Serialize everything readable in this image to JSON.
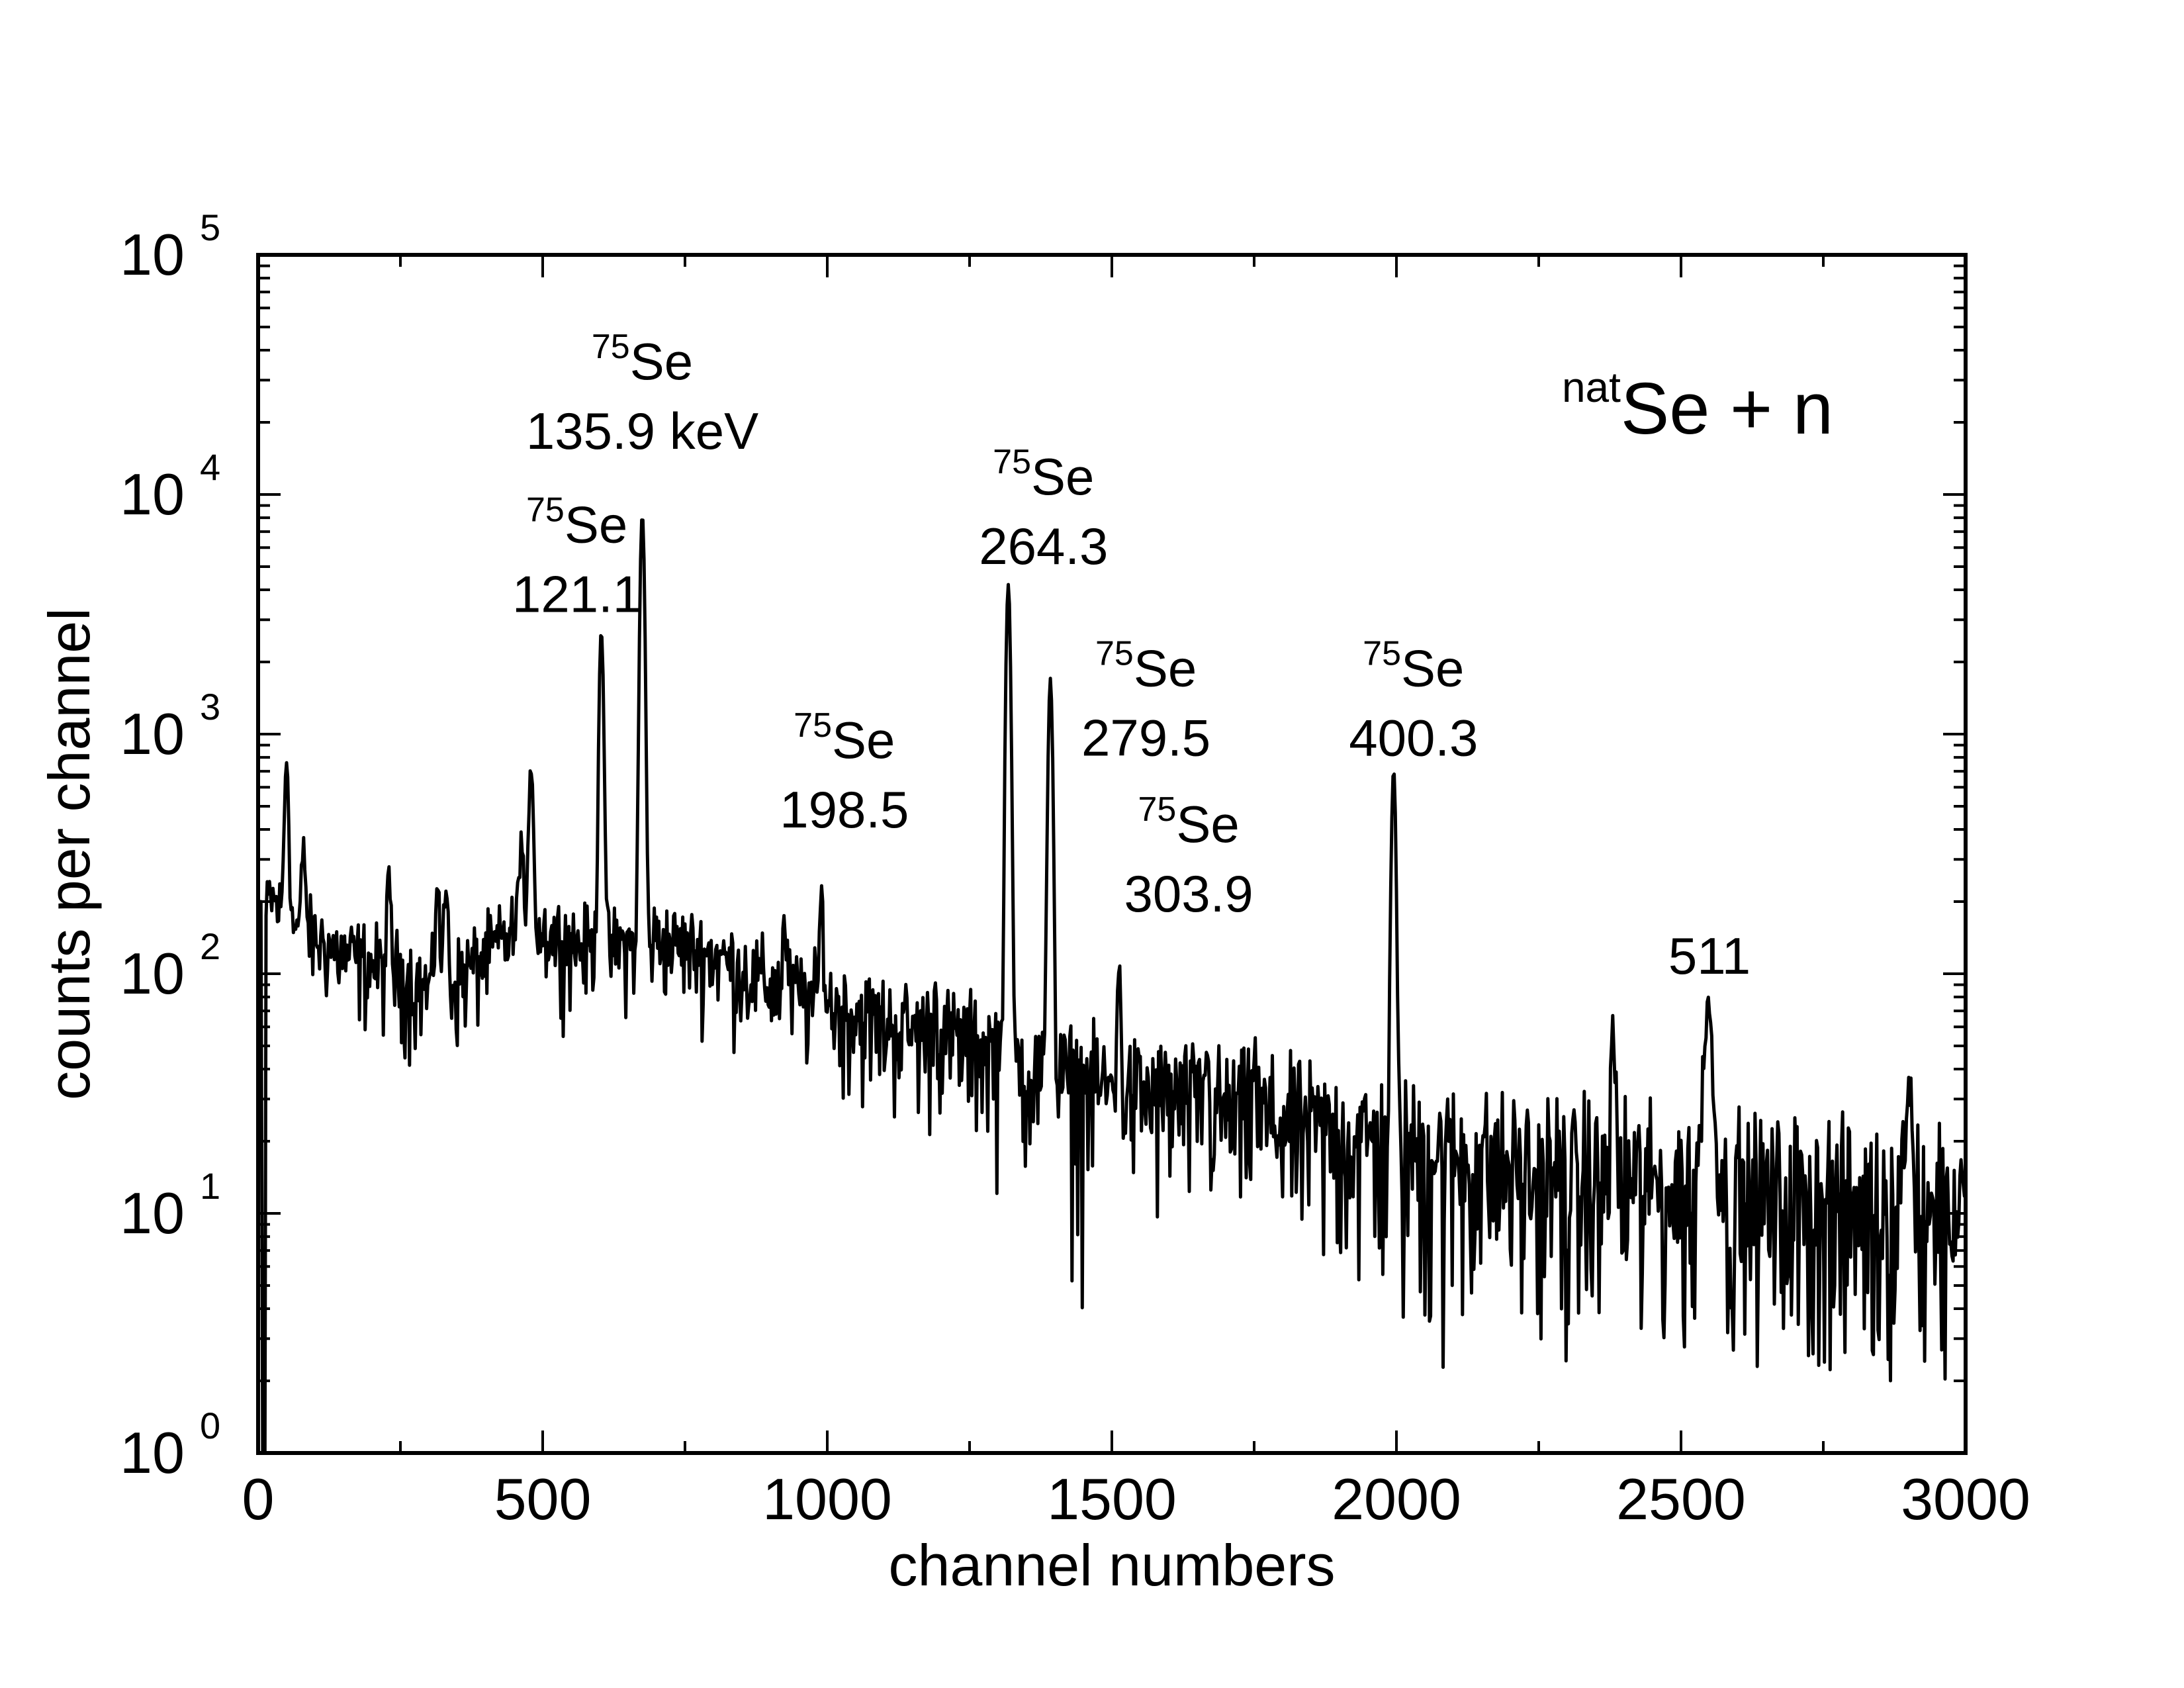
{
  "chart_data": {
    "type": "line",
    "title": "",
    "xlabel": "channel numbers",
    "ylabel": "counts per channel",
    "xlim": [
      0,
      3000
    ],
    "ylim": [
      1,
      100000
    ],
    "yscale": "log",
    "x_ticks": [
      {
        "value": 0,
        "label": "0"
      },
      {
        "value": 500,
        "label": "500"
      },
      {
        "value": 1000,
        "label": "1000"
      },
      {
        "value": 1500,
        "label": "1500"
      },
      {
        "value": 2000,
        "label": "2000"
      },
      {
        "value": 2500,
        "label": "2500"
      },
      {
        "value": 3000,
        "label": "3000"
      }
    ],
    "y_ticks": [
      {
        "value": 1,
        "base": "10",
        "exp": "0"
      },
      {
        "value": 10,
        "base": "10",
        "exp": "1"
      },
      {
        "value": 100,
        "base": "10",
        "exp": "2"
      },
      {
        "value": 1000,
        "base": "10",
        "exp": "3"
      },
      {
        "value": 10000,
        "base": "10",
        "exp": "4"
      },
      {
        "value": 100000,
        "base": "10",
        "exp": "5"
      }
    ],
    "background": [
      [
        0,
        100
      ],
      [
        20,
        210
      ],
      [
        60,
        160
      ],
      [
        150,
        120
      ],
      [
        250,
        100
      ],
      [
        300,
        85
      ],
      [
        350,
        95
      ],
      [
        420,
        130
      ],
      [
        470,
        165
      ],
      [
        520,
        145
      ],
      [
        600,
        125
      ],
      [
        700,
        140
      ],
      [
        800,
        120
      ],
      [
        900,
        90
      ],
      [
        1000,
        75
      ],
      [
        1100,
        62
      ],
      [
        1200,
        55
      ],
      [
        1300,
        48
      ],
      [
        1350,
        40
      ],
      [
        1400,
        36
      ],
      [
        1500,
        33
      ],
      [
        1600,
        30
      ],
      [
        1700,
        27
      ],
      [
        1800,
        24
      ],
      [
        1900,
        21
      ],
      [
        2000,
        19
      ],
      [
        2100,
        17
      ],
      [
        2200,
        15.5
      ],
      [
        2300,
        14
      ],
      [
        2400,
        13.5
      ],
      [
        2500,
        12.5
      ],
      [
        2600,
        12
      ],
      [
        2700,
        11.5
      ],
      [
        2800,
        11
      ],
      [
        2900,
        11
      ],
      [
        3000,
        10.5
      ]
    ],
    "peaks": [
      {
        "channel": 50,
        "counts": 780
      },
      {
        "channel": 80,
        "counts": 330
      },
      {
        "channel": 230,
        "counts": 240
      },
      {
        "channel": 315,
        "counts": 250
      },
      {
        "channel": 330,
        "counts": 230
      },
      {
        "channel": 462,
        "counts": 370
      },
      {
        "channel": 480,
        "counts": 750
      },
      {
        "channel": 603,
        "counts": 2700,
        "label": "121.1"
      },
      {
        "channel": 675,
        "counts": 8200,
        "label": "135.9 keV"
      },
      {
        "channel": 925,
        "counts": 160
      },
      {
        "channel": 990,
        "counts": 210,
        "label": "198.5"
      },
      {
        "channel": 1190,
        "counts": 80
      },
      {
        "channel": 1318,
        "counts": 4200,
        "label": "264.3"
      },
      {
        "channel": 1392,
        "counts": 1700,
        "label": "279.5"
      },
      {
        "channel": 1512,
        "counts": 100,
        "label": "303.9"
      },
      {
        "channel": 1665,
        "counts": 45
      },
      {
        "channel": 1750,
        "counts": 45
      },
      {
        "channel": 1995,
        "counts": 700,
        "label": "400.3"
      },
      {
        "channel": 2380,
        "counts": 62
      },
      {
        "channel": 2548,
        "counts": 75,
        "label": "511"
      },
      {
        "channel": 2900,
        "counts": 30
      }
    ],
    "annotations": [
      {
        "sup": "75",
        "main": "Se",
        "line2": "135.9 keV",
        "x": 675,
        "y_log": 4.48
      },
      {
        "sup": "75",
        "main": "Se",
        "line2": "121.1",
        "x": 560,
        "y_log": 3.8
      },
      {
        "sup": "75",
        "main": "Se",
        "line2": "264.3",
        "x": 1380,
        "y_log": 4.0
      },
      {
        "sup": "75",
        "main": "Se",
        "line2": "279.5",
        "x": 1560,
        "y_log": 3.2
      },
      {
        "sup": "75",
        "main": "Se",
        "line2": "198.5",
        "x": 1030,
        "y_log": 2.9
      },
      {
        "sup": "75",
        "main": "Se",
        "line2": "303.9",
        "x": 1635,
        "y_log": 2.55
      },
      {
        "sup": "75",
        "main": "Se",
        "line2": "400.3",
        "x": 2030,
        "y_log": 3.2
      },
      {
        "sup": "",
        "main": "",
        "line2": "511",
        "x": 2550,
        "y_log": 2.0
      }
    ],
    "reaction_label": {
      "sup": "nat",
      "main": "Se + n"
    }
  }
}
